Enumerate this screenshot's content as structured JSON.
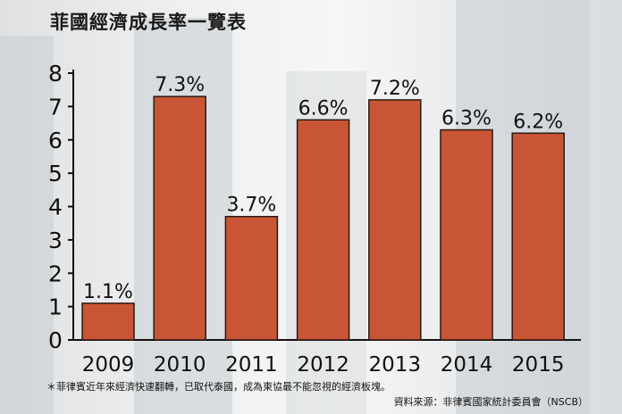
{
  "title": "菲國經濟成長率一覽表",
  "note": "＊菲律賓近年來經濟快速翻轉，已取代泰國，成為東協最不能忽視的經濟板塊。",
  "source": "資料來源：非律賓國家統計委員會（NSCB）",
  "colors": {
    "bar": "#c85535",
    "bar_outline": "#2a1a14",
    "axis": "#111111"
  },
  "chart_data": {
    "type": "bar",
    "title": "菲國經濟成長率一覽表",
    "categories": [
      "2009",
      "2010",
      "2011",
      "2012",
      "2013",
      "2014",
      "2015"
    ],
    "values": [
      1.1,
      7.3,
      3.7,
      6.6,
      7.2,
      6.3,
      6.2
    ],
    "labels": [
      "1.1%",
      "7.3%",
      "3.7%",
      "6.6%",
      "7.2%",
      "6.3%",
      "6.2%"
    ],
    "yticks": [
      "0",
      "1",
      "2",
      "3",
      "4",
      "5",
      "6",
      "7",
      "8"
    ],
    "ylim": [
      0,
      8
    ],
    "grid": false,
    "legend": "none"
  }
}
